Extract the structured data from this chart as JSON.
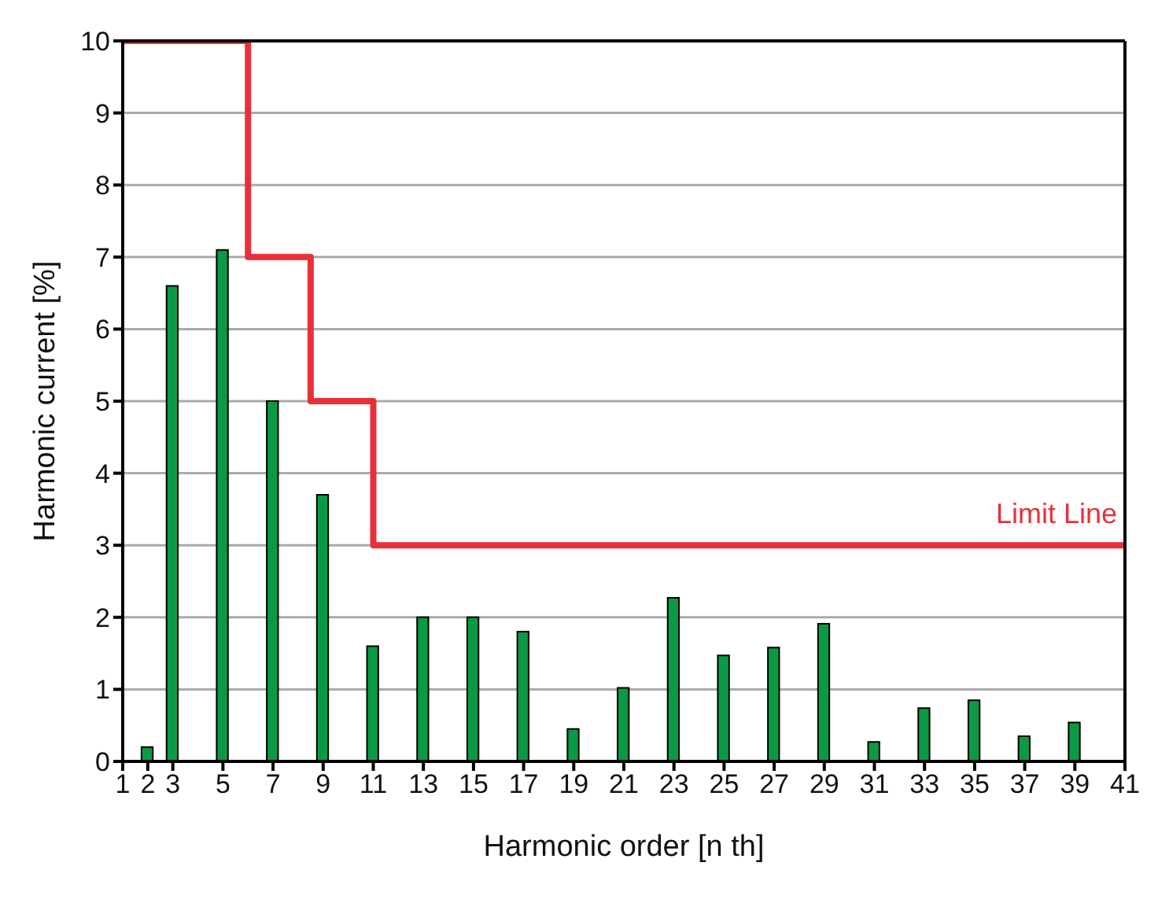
{
  "chart_data": {
    "type": "bar",
    "xlabel": "Harmonic order [n th]",
    "ylabel": "Harmonic current  [%]",
    "x": [
      2,
      3,
      5,
      7,
      9,
      11,
      13,
      15,
      17,
      19,
      21,
      23,
      25,
      27,
      29,
      31,
      33,
      35,
      37,
      39
    ],
    "xlim": [
      1,
      41
    ],
    "xticks": [
      1,
      2,
      3,
      5,
      7,
      9,
      11,
      13,
      15,
      17,
      19,
      21,
      23,
      25,
      27,
      29,
      31,
      33,
      35,
      37,
      39,
      41
    ],
    "ylim": [
      0,
      10
    ],
    "yticks": [
      0,
      1,
      2,
      3,
      4,
      5,
      6,
      7,
      8,
      9,
      10
    ],
    "grid": "y",
    "legend": false,
    "series": [
      {
        "color": "#0a9a44",
        "values": [
          0.2,
          6.6,
          7.1,
          5.0,
          3.7,
          1.6,
          2.0,
          2.0,
          1.8,
          0.45,
          1.02,
          2.27,
          1.47,
          1.58,
          1.91,
          0.27,
          0.74,
          0.85,
          0.35,
          0.54
        ]
      },
      {
        "type": "line",
        "name": "Limit Line",
        "color": "#e8303a",
        "x": [
          1,
          6,
          6,
          8.5,
          8.5,
          11,
          11,
          41
        ],
        "values": [
          10,
          10,
          7,
          7,
          5,
          5,
          3,
          3
        ]
      }
    ]
  }
}
